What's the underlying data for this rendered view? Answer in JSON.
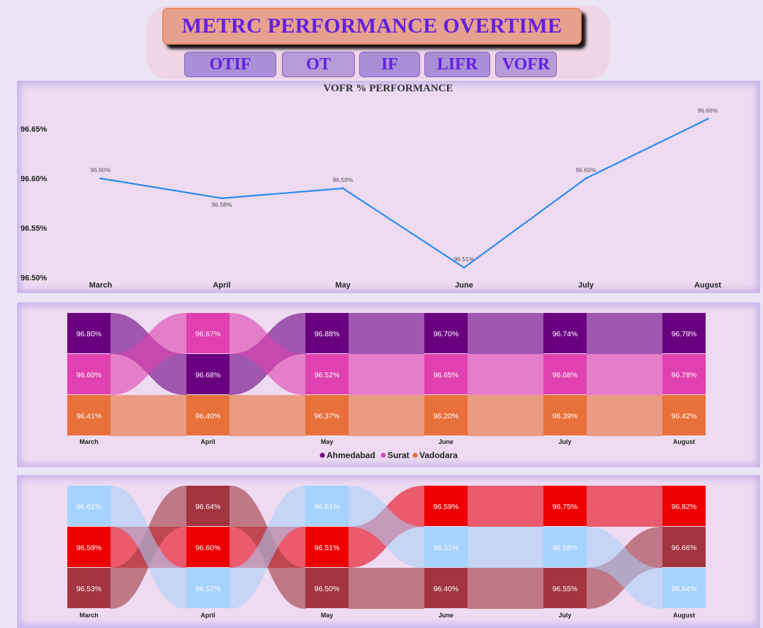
{
  "header": {
    "title": "METRC PERFORMANCE OVERTIME",
    "tabs": [
      "OTIF",
      "OT",
      "IF",
      "LIFR",
      "VOFR"
    ]
  },
  "colors": {
    "line": "#2b8cf0",
    "ahmedabad": "#6a0080",
    "surat": "#e040b0",
    "vadodara": "#e8703a",
    "red": "#ee0000",
    "maroon": "#a23540",
    "light_blue": "#a6d2ff"
  },
  "chart_data": [
    {
      "type": "line",
      "title": "VOFR % PERFORMANCE",
      "categories": [
        "March",
        "April",
        "May",
        "June",
        "July",
        "August"
      ],
      "series": [
        {
          "values": [
            96.6,
            96.58,
            96.59,
            96.51,
            96.6,
            96.66
          ],
          "labels": [
            "96.60%",
            "96.58%",
            "96.59%",
            "96.51%",
            "96.60%",
            "96.66%"
          ]
        }
      ],
      "yticks": [
        "96.50%",
        "96.55%",
        "96.60%",
        "96.65%"
      ],
      "ylim": [
        96.5,
        96.665
      ]
    },
    {
      "type": "ribbon",
      "categories": [
        "March",
        "April",
        "May",
        "June",
        "July",
        "August"
      ],
      "series": [
        {
          "name": "Ahmedabad",
          "values": [
            "96.80%",
            "96.68%",
            "96.88%",
            "96.70%",
            "96.74%",
            "96.79%"
          ]
        },
        {
          "name": "Surat",
          "values": [
            "96.60%",
            "96.67%",
            "96.52%",
            "96.65%",
            "96.68%",
            "96.78%"
          ]
        },
        {
          "name": "Vadodara",
          "values": [
            "96.41%",
            "96.40%",
            "96.37%",
            "96.20%",
            "96.39%",
            "96.42%"
          ]
        }
      ],
      "legend": [
        "Ahmedabad",
        "Surat",
        "Vadodara"
      ],
      "legend_position": "bottom"
    },
    {
      "type": "ribbon",
      "categories": [
        "March",
        "April",
        "May",
        "June",
        "July",
        "August"
      ],
      "cells": [
        [
          "96.61%",
          "96.64%",
          "96.61%",
          "96.59%",
          "96.75%",
          "96.82%"
        ],
        [
          "96.59%",
          "96.60%",
          "96.51%",
          "96.51%",
          "96.58%",
          "96.66%"
        ],
        [
          "96.53%",
          "96.57%",
          "96.50%",
          "96.40%",
          "96.55%",
          "96.64%"
        ]
      ]
    }
  ]
}
